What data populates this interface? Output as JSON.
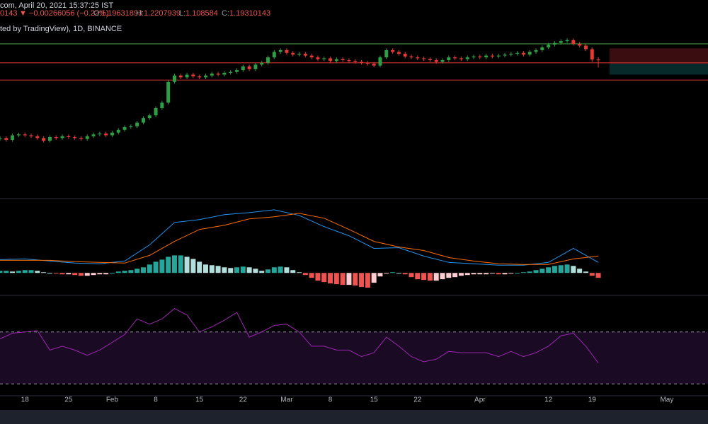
{
  "header": {
    "timestamp": "com, April 20, 2021 15:37:25 IST",
    "last_fragment": "0143",
    "change_text": "▼ −0.00266056 (−0.22%)",
    "ohlc_labels": [
      "O:",
      "H:",
      "L:",
      "C:"
    ],
    "source": "ted by TradingView), 1D, BINANCE"
  },
  "chart_data": [
    {
      "type": "candlestick",
      "xlim": [
        0,
        113.6
      ],
      "ylim": [
        -0.33,
        1.853
      ],
      "up_color": "#2e9e44",
      "down_color": "#e53935",
      "open": [
        0.32,
        0.33,
        0.31,
        0.36,
        0.37,
        0.36,
        0.35,
        0.33,
        0.3,
        0.34,
        0.33,
        0.35,
        0.34,
        0.33,
        0.32,
        0.35,
        0.37,
        0.38,
        0.36,
        0.39,
        0.42,
        0.45,
        0.46,
        0.5,
        0.55,
        0.58,
        0.66,
        0.72,
        0.95,
        1.02,
        1.0,
        1.03,
        1.01,
        1.0,
        1.02,
        1.04,
        1.03,
        1.05,
        1.06,
        1.08,
        1.12,
        1.09,
        1.14,
        1.16,
        1.22,
        1.28,
        1.3,
        1.27,
        1.25,
        1.26,
        1.24,
        1.22,
        1.2,
        1.21,
        1.18,
        1.2,
        1.19,
        1.18,
        1.17,
        1.16,
        1.15,
        1.13,
        1.22,
        1.3,
        1.28,
        1.26,
        1.23,
        1.22,
        1.21,
        1.2,
        1.19,
        1.17,
        1.19,
        1.22,
        1.21,
        1.2,
        1.22,
        1.23,
        1.22,
        1.24,
        1.23,
        1.24,
        1.25,
        1.26,
        1.27,
        1.25,
        1.28,
        1.3,
        1.33,
        1.36,
        1.38,
        1.4,
        1.41,
        1.37,
        1.35,
        1.31,
        1.19631893
      ],
      "high": [
        0.35,
        0.35,
        0.38,
        0.39,
        0.39,
        0.38,
        0.37,
        0.35,
        0.36,
        0.36,
        0.37,
        0.37,
        0.36,
        0.35,
        0.37,
        0.39,
        0.4,
        0.4,
        0.41,
        0.44,
        0.47,
        0.48,
        0.52,
        0.57,
        0.6,
        0.68,
        0.74,
        0.97,
        1.04,
        1.04,
        1.05,
        1.05,
        1.03,
        1.04,
        1.06,
        1.06,
        1.07,
        1.08,
        1.1,
        1.14,
        1.14,
        1.16,
        1.18,
        1.24,
        1.3,
        1.32,
        1.32,
        1.29,
        1.28,
        1.28,
        1.26,
        1.24,
        1.23,
        1.23,
        1.22,
        1.22,
        1.21,
        1.2,
        1.19,
        1.18,
        1.17,
        1.24,
        1.32,
        1.32,
        1.3,
        1.28,
        1.25,
        1.24,
        1.23,
        1.22,
        1.21,
        1.21,
        1.24,
        1.24,
        1.23,
        1.24,
        1.25,
        1.25,
        1.26,
        1.26,
        1.26,
        1.27,
        1.28,
        1.29,
        1.29,
        1.3,
        1.32,
        1.35,
        1.38,
        1.4,
        1.42,
        1.43,
        1.43,
        1.39,
        1.37,
        1.33,
        1.2207939
      ],
      "low": [
        0.3,
        0.29,
        0.29,
        0.34,
        0.34,
        0.33,
        0.31,
        0.28,
        0.28,
        0.31,
        0.31,
        0.32,
        0.31,
        0.3,
        0.3,
        0.33,
        0.35,
        0.34,
        0.34,
        0.37,
        0.4,
        0.43,
        0.44,
        0.48,
        0.53,
        0.56,
        0.64,
        0.7,
        0.93,
        0.98,
        0.98,
        0.99,
        0.98,
        0.98,
        1.0,
        1.01,
        1.01,
        1.03,
        1.04,
        1.06,
        1.07,
        1.07,
        1.12,
        1.14,
        1.2,
        1.26,
        1.25,
        1.23,
        1.23,
        1.22,
        1.2,
        1.18,
        1.18,
        1.16,
        1.16,
        1.17,
        1.16,
        1.15,
        1.14,
        1.13,
        1.11,
        1.11,
        1.2,
        1.26,
        1.24,
        1.21,
        1.2,
        1.19,
        1.18,
        1.17,
        1.15,
        1.15,
        1.17,
        1.19,
        1.18,
        1.18,
        1.2,
        1.2,
        1.2,
        1.21,
        1.21,
        1.22,
        1.23,
        1.24,
        1.23,
        1.23,
        1.26,
        1.28,
        1.31,
        1.34,
        1.36,
        1.38,
        1.35,
        1.33,
        1.29,
        1.17,
        1.108584
      ],
      "close": [
        0.33,
        0.31,
        0.36,
        0.37,
        0.36,
        0.35,
        0.33,
        0.3,
        0.34,
        0.33,
        0.35,
        0.34,
        0.33,
        0.32,
        0.35,
        0.37,
        0.38,
        0.36,
        0.39,
        0.42,
        0.45,
        0.46,
        0.5,
        0.55,
        0.58,
        0.66,
        0.72,
        0.95,
        1.02,
        1.0,
        1.03,
        1.01,
        1.0,
        1.02,
        1.04,
        1.03,
        1.05,
        1.06,
        1.08,
        1.12,
        1.09,
        1.14,
        1.16,
        1.22,
        1.28,
        1.3,
        1.27,
        1.25,
        1.26,
        1.24,
        1.22,
        1.2,
        1.21,
        1.18,
        1.2,
        1.19,
        1.18,
        1.17,
        1.16,
        1.15,
        1.13,
        1.22,
        1.3,
        1.28,
        1.26,
        1.23,
        1.22,
        1.21,
        1.2,
        1.19,
        1.17,
        1.19,
        1.22,
        1.21,
        1.2,
        1.22,
        1.23,
        1.22,
        1.24,
        1.23,
        1.24,
        1.25,
        1.26,
        1.27,
        1.25,
        1.28,
        1.3,
        1.33,
        1.36,
        1.38,
        1.4,
        1.41,
        1.37,
        1.35,
        1.31,
        1.19576199,
        1.19310143
      ],
      "hlines": [
        {
          "value": 1.37,
          "color": "#4caf50"
        },
        {
          "value": 1.16,
          "color": "#e53935"
        },
        {
          "value": 0.97,
          "color": "#e53935"
        }
      ],
      "zone": {
        "x": [
          97.8,
          113.6
        ],
        "top": 1.32,
        "mid": 1.15,
        "bottom": 1.03,
        "top_color": "#3a0d10",
        "bottom_color": "#062a2a"
      }
    },
    {
      "type": "macd",
      "xlim": [
        0,
        113.6
      ],
      "ylim": [
        -0.031,
        0.105
      ],
      "histogram": [
        0.003,
        0.003,
        0.002,
        0.003,
        0.004,
        0.004,
        0.003,
        0.001,
        0.0,
        -0.001,
        -0.002,
        -0.002,
        -0.003,
        -0.004,
        -0.004,
        -0.003,
        -0.002,
        -0.002,
        0.0,
        0.002,
        0.003,
        0.004,
        0.006,
        0.008,
        0.012,
        0.016,
        0.019,
        0.023,
        0.025,
        0.025,
        0.023,
        0.02,
        0.016,
        0.012,
        0.011,
        0.01,
        0.008,
        0.007,
        0.008,
        0.009,
        0.008,
        0.006,
        0.003,
        0.005,
        0.008,
        0.009,
        0.008,
        0.004,
        0.001,
        -0.003,
        -0.007,
        -0.011,
        -0.013,
        -0.015,
        -0.016,
        -0.017,
        -0.017,
        -0.018,
        -0.02,
        -0.021,
        -0.014,
        -0.005,
        -0.001,
        0.001,
        0.0,
        -0.002,
        -0.006,
        -0.009,
        -0.01,
        -0.011,
        -0.011,
        -0.009,
        -0.007,
        -0.006,
        -0.004,
        -0.003,
        -0.002,
        -0.002,
        -0.002,
        -0.001,
        -0.002,
        -0.002,
        -0.001,
        0.0,
        0.001,
        0.002,
        0.004,
        0.006,
        0.008,
        0.01,
        0.011,
        0.012,
        0.01,
        0.006,
        0.002,
        -0.004,
        -0.007
      ],
      "histogram_colors": [
        "#26a69a",
        "#b2dfdb",
        "#ffcdd2",
        "#ef5350"
      ],
      "series": [
        {
          "color": "#2196f3",
          "x": [
            0,
            4,
            8,
            12,
            16,
            20,
            24,
            28,
            32,
            36,
            40,
            44,
            48,
            52,
            56,
            60,
            64,
            68,
            72,
            76,
            80,
            84,
            88,
            92,
            96
          ],
          "values": [
            0.019,
            0.02,
            0.017,
            0.014,
            0.013,
            0.017,
            0.04,
            0.072,
            0.076,
            0.083,
            0.086,
            0.09,
            0.082,
            0.066,
            0.053,
            0.035,
            0.036,
            0.024,
            0.015,
            0.013,
            0.011,
            0.011,
            0.015,
            0.035,
            0.015
          ]
        },
        {
          "color": "#ff6d00",
          "x": [
            0,
            4,
            8,
            12,
            16,
            20,
            24,
            28,
            32,
            36,
            40,
            44,
            48,
            52,
            56,
            60,
            64,
            68,
            72,
            76,
            80,
            84,
            88,
            92,
            96
          ],
          "values": [
            0.018,
            0.018,
            0.018,
            0.016,
            0.015,
            0.014,
            0.025,
            0.045,
            0.062,
            0.068,
            0.077,
            0.08,
            0.085,
            0.078,
            0.062,
            0.045,
            0.037,
            0.032,
            0.022,
            0.017,
            0.013,
            0.012,
            0.012,
            0.02,
            0.024
          ]
        }
      ]
    },
    {
      "type": "rsi",
      "xlim": [
        0,
        113.6
      ],
      "ylim": [
        21.4,
        97.6
      ],
      "color": "#9c27b0",
      "band_color": "#1a0a24",
      "levels": [
        70,
        30
      ],
      "x": [
        0,
        2,
        4,
        6,
        8,
        10,
        12,
        14,
        16,
        18,
        20,
        22,
        24,
        26,
        28,
        30,
        32,
        34,
        36,
        38,
        40,
        42,
        44,
        46,
        48,
        50,
        52,
        54,
        56,
        58,
        60,
        62,
        64,
        66,
        68,
        70,
        72,
        74,
        76,
        78,
        80,
        82,
        84,
        86,
        88,
        90,
        92,
        94,
        96
      ],
      "values": [
        64.6,
        69,
        70,
        71,
        56,
        59,
        56,
        52,
        56,
        62,
        68,
        80,
        76,
        80,
        88,
        83,
        70,
        74,
        79,
        85,
        66,
        70,
        75,
        76,
        70,
        59,
        59,
        56,
        56,
        51,
        54,
        66,
        59,
        51,
        47,
        49,
        55,
        54,
        54,
        54,
        51,
        55,
        51,
        54,
        59,
        67,
        69,
        59,
        46
      ],
      "xticks": [
        {
          "value": 4,
          "label": "18"
        },
        {
          "value": 11,
          "label": "25"
        },
        {
          "value": 18,
          "label": "Feb"
        },
        {
          "value": 25,
          "label": "8"
        },
        {
          "value": 32,
          "label": "15"
        },
        {
          "value": 39,
          "label": "22"
        },
        {
          "value": 46,
          "label": "Mar"
        },
        {
          "value": 53,
          "label": "8"
        },
        {
          "value": 60,
          "label": "15"
        },
        {
          "value": 67,
          "label": "22"
        },
        {
          "value": 77,
          "label": "Apr"
        },
        {
          "value": 88,
          "label": "12"
        },
        {
          "value": 95,
          "label": "19"
        },
        {
          "value": 107,
          "label": "May"
        }
      ]
    }
  ]
}
